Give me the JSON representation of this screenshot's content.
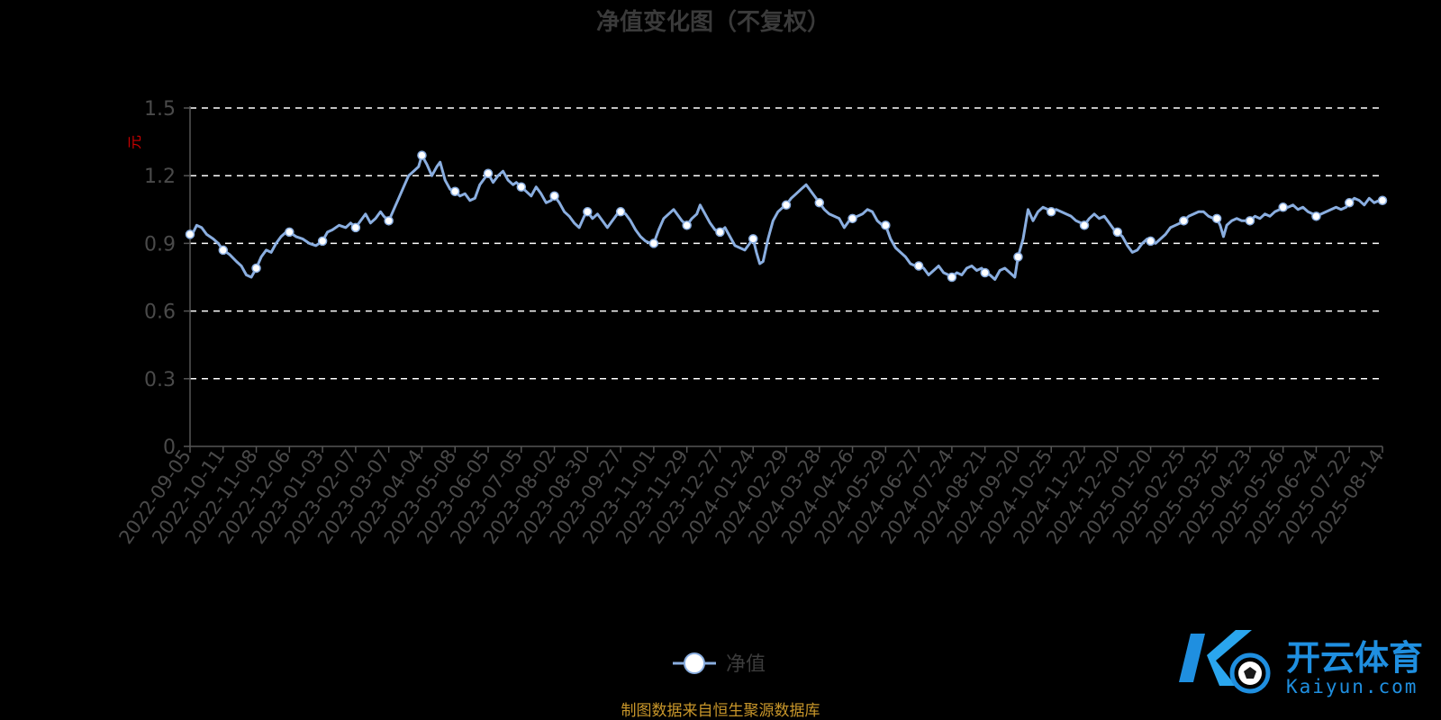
{
  "chart_data": {
    "type": "line",
    "title": "净值变化图（不复权）",
    "ylabel": "元",
    "xlabel": "",
    "ylim": [
      0,
      1.5
    ],
    "yticks": [
      "0",
      "0.3",
      "0.6",
      "0.9",
      "1.2",
      "1.5"
    ],
    "grid": true,
    "legend_position": "bottom-center",
    "categories": [
      "2022-09-05",
      "2022-10-11",
      "2022-11-08",
      "2022-12-06",
      "2023-01-03",
      "2023-02-07",
      "2023-03-07",
      "2023-04-04",
      "2023-05-08",
      "2023-06-05",
      "2023-07-05",
      "2023-08-02",
      "2023-08-30",
      "2023-09-27",
      "2023-11-01",
      "2023-11-29",
      "2023-12-27",
      "2024-01-24",
      "2024-02-29",
      "2024-03-28",
      "2024-04-26",
      "2024-05-29",
      "2024-06-27",
      "2024-07-24",
      "2024-08-21",
      "2024-09-20",
      "2024-10-25",
      "2024-11-22",
      "2024-12-20",
      "2025-01-20",
      "2025-02-25",
      "2025-03-25",
      "2025-04-23",
      "2025-05-26",
      "2025-06-24",
      "2025-07-22",
      "2025-08-14"
    ],
    "series": [
      {
        "name": "净值",
        "color": "#8aaee0",
        "values": [
          0.94,
          0.87,
          0.79,
          0.95,
          0.91,
          0.97,
          1.0,
          1.29,
          1.13,
          1.21,
          1.15,
          1.11,
          1.04,
          1.04,
          0.9,
          0.98,
          0.95,
          0.92,
          1.07,
          1.08,
          1.01,
          0.98,
          0.8,
          0.75,
          0.77,
          0.84,
          1.04,
          0.98,
          0.95,
          0.91,
          1.0,
          1.01,
          1.0,
          1.06,
          1.02,
          1.08,
          1.09
        ],
        "path_points": [
          [
            0,
            0.93
          ],
          [
            0.1,
            0.95
          ],
          [
            0.2,
            0.98
          ],
          [
            0.35,
            0.97
          ],
          [
            0.5,
            0.94
          ],
          [
            0.7,
            0.92
          ],
          [
            0.85,
            0.9
          ],
          [
            1,
            0.87
          ],
          [
            1.2,
            0.85
          ],
          [
            1.4,
            0.82
          ],
          [
            1.55,
            0.8
          ],
          [
            1.7,
            0.76
          ],
          [
            1.85,
            0.75
          ],
          [
            2,
            0.79
          ],
          [
            2.15,
            0.84
          ],
          [
            2.3,
            0.87
          ],
          [
            2.45,
            0.86
          ],
          [
            2.6,
            0.9
          ],
          [
            2.75,
            0.93
          ],
          [
            2.9,
            0.95
          ],
          [
            3,
            0.95
          ],
          [
            3.2,
            0.93
          ],
          [
            3.4,
            0.92
          ],
          [
            3.6,
            0.9
          ],
          [
            3.8,
            0.89
          ],
          [
            4,
            0.91
          ],
          [
            4.15,
            0.95
          ],
          [
            4.3,
            0.96
          ],
          [
            4.5,
            0.98
          ],
          [
            4.7,
            0.97
          ],
          [
            4.85,
            0.99
          ],
          [
            5,
            0.97
          ],
          [
            5.15,
            1.0
          ],
          [
            5.3,
            1.03
          ],
          [
            5.45,
            0.99
          ],
          [
            5.6,
            1.01
          ],
          [
            5.75,
            1.04
          ],
          [
            5.85,
            1.02
          ],
          [
            6,
            1.0
          ],
          [
            6.15,
            1.05
          ],
          [
            6.3,
            1.1
          ],
          [
            6.45,
            1.15
          ],
          [
            6.6,
            1.2
          ],
          [
            6.75,
            1.22
          ],
          [
            6.9,
            1.24
          ],
          [
            7,
            1.29
          ],
          [
            7.15,
            1.25
          ],
          [
            7.3,
            1.2
          ],
          [
            7.45,
            1.24
          ],
          [
            7.55,
            1.26
          ],
          [
            7.7,
            1.18
          ],
          [
            7.85,
            1.14
          ],
          [
            8,
            1.13
          ],
          [
            8.15,
            1.11
          ],
          [
            8.3,
            1.12
          ],
          [
            8.45,
            1.09
          ],
          [
            8.6,
            1.1
          ],
          [
            8.75,
            1.16
          ],
          [
            8.9,
            1.19
          ],
          [
            9,
            1.21
          ],
          [
            9.15,
            1.17
          ],
          [
            9.3,
            1.2
          ],
          [
            9.45,
            1.22
          ],
          [
            9.6,
            1.18
          ],
          [
            9.75,
            1.16
          ],
          [
            9.85,
            1.17
          ],
          [
            10,
            1.15
          ],
          [
            10.15,
            1.13
          ],
          [
            10.3,
            1.11
          ],
          [
            10.45,
            1.15
          ],
          [
            10.6,
            1.12
          ],
          [
            10.75,
            1.08
          ],
          [
            10.9,
            1.09
          ],
          [
            11,
            1.11
          ],
          [
            11.15,
            1.08
          ],
          [
            11.3,
            1.04
          ],
          [
            11.45,
            1.02
          ],
          [
            11.6,
            0.99
          ],
          [
            11.75,
            0.97
          ],
          [
            11.9,
            1.02
          ],
          [
            12,
            1.04
          ],
          [
            12.15,
            1.01
          ],
          [
            12.3,
            1.03
          ],
          [
            12.45,
            1.0
          ],
          [
            12.6,
            0.97
          ],
          [
            12.75,
            1.0
          ],
          [
            12.9,
            1.03
          ],
          [
            13,
            1.04
          ],
          [
            13.15,
            1.03
          ],
          [
            13.3,
            1.0
          ],
          [
            13.45,
            0.96
          ],
          [
            13.6,
            0.93
          ],
          [
            13.75,
            0.91
          ],
          [
            13.9,
            0.9
          ],
          [
            14,
            0.9
          ],
          [
            14.15,
            0.96
          ],
          [
            14.3,
            1.01
          ],
          [
            14.45,
            1.03
          ],
          [
            14.6,
            1.05
          ],
          [
            14.75,
            1.02
          ],
          [
            14.85,
            1.0
          ],
          [
            15,
            0.98
          ],
          [
            15.15,
            1.01
          ],
          [
            15.3,
            1.03
          ],
          [
            15.4,
            1.07
          ],
          [
            15.55,
            1.03
          ],
          [
            15.7,
            0.99
          ],
          [
            15.85,
            0.96
          ],
          [
            16,
            0.95
          ],
          [
            16.15,
            0.97
          ],
          [
            16.3,
            0.93
          ],
          [
            16.45,
            0.89
          ],
          [
            16.6,
            0.88
          ],
          [
            16.75,
            0.87
          ],
          [
            16.9,
            0.9
          ],
          [
            17,
            0.92
          ],
          [
            17.1,
            0.86
          ],
          [
            17.2,
            0.81
          ],
          [
            17.3,
            0.82
          ],
          [
            17.45,
            0.92
          ],
          [
            17.6,
            1.0
          ],
          [
            17.75,
            1.04
          ],
          [
            17.9,
            1.06
          ],
          [
            18,
            1.07
          ],
          [
            18.15,
            1.1
          ],
          [
            18.3,
            1.12
          ],
          [
            18.45,
            1.14
          ],
          [
            18.6,
            1.16
          ],
          [
            18.75,
            1.13
          ],
          [
            18.9,
            1.1
          ],
          [
            19,
            1.08
          ],
          [
            19.15,
            1.05
          ],
          [
            19.3,
            1.03
          ],
          [
            19.45,
            1.02
          ],
          [
            19.6,
            1.01
          ],
          [
            19.75,
            0.97
          ],
          [
            19.9,
            1.0
          ],
          [
            20,
            1.01
          ],
          [
            20.15,
            1.02
          ],
          [
            20.3,
            1.03
          ],
          [
            20.45,
            1.05
          ],
          [
            20.6,
            1.04
          ],
          [
            20.75,
            1.0
          ],
          [
            20.9,
            0.98
          ],
          [
            21,
            0.98
          ],
          [
            21.15,
            0.92
          ],
          [
            21.3,
            0.88
          ],
          [
            21.45,
            0.86
          ],
          [
            21.6,
            0.84
          ],
          [
            21.75,
            0.81
          ],
          [
            21.9,
            0.8
          ],
          [
            22,
            0.8
          ],
          [
            22.15,
            0.79
          ],
          [
            22.3,
            0.76
          ],
          [
            22.45,
            0.78
          ],
          [
            22.6,
            0.8
          ],
          [
            22.75,
            0.77
          ],
          [
            22.9,
            0.76
          ],
          [
            23,
            0.75
          ],
          [
            23.15,
            0.77
          ],
          [
            23.3,
            0.76
          ],
          [
            23.45,
            0.79
          ],
          [
            23.6,
            0.8
          ],
          [
            23.75,
            0.78
          ],
          [
            23.9,
            0.79
          ],
          [
            24,
            0.77
          ],
          [
            24.15,
            0.76
          ],
          [
            24.3,
            0.74
          ],
          [
            24.45,
            0.78
          ],
          [
            24.6,
            0.79
          ],
          [
            24.75,
            0.77
          ],
          [
            24.9,
            0.75
          ],
          [
            25,
            0.84
          ],
          [
            25.15,
            0.92
          ],
          [
            25.3,
            1.05
          ],
          [
            25.45,
            1.0
          ],
          [
            25.6,
            1.04
          ],
          [
            25.75,
            1.06
          ],
          [
            25.9,
            1.05
          ],
          [
            26,
            1.04
          ],
          [
            26.15,
            1.05
          ],
          [
            26.3,
            1.04
          ],
          [
            26.45,
            1.03
          ],
          [
            26.6,
            1.02
          ],
          [
            26.75,
            1.0
          ],
          [
            26.9,
            0.99
          ],
          [
            27,
            0.98
          ],
          [
            27.15,
            1.01
          ],
          [
            27.3,
            1.03
          ],
          [
            27.45,
            1.01
          ],
          [
            27.6,
            1.02
          ],
          [
            27.75,
            0.99
          ],
          [
            27.9,
            0.96
          ],
          [
            28,
            0.95
          ],
          [
            28.15,
            0.93
          ],
          [
            28.3,
            0.89
          ],
          [
            28.45,
            0.86
          ],
          [
            28.6,
            0.87
          ],
          [
            28.75,
            0.9
          ],
          [
            28.9,
            0.92
          ],
          [
            29,
            0.91
          ],
          [
            29.15,
            0.9
          ],
          [
            29.3,
            0.92
          ],
          [
            29.45,
            0.94
          ],
          [
            29.6,
            0.97
          ],
          [
            29.75,
            0.98
          ],
          [
            29.9,
            0.99
          ],
          [
            30,
            1.0
          ],
          [
            30.15,
            1.02
          ],
          [
            30.3,
            1.03
          ],
          [
            30.45,
            1.04
          ],
          [
            30.6,
            1.04
          ],
          [
            30.75,
            1.02
          ],
          [
            30.9,
            1.01
          ],
          [
            31,
            1.01
          ],
          [
            31.1,
            0.98
          ],
          [
            31.2,
            0.93
          ],
          [
            31.3,
            0.98
          ],
          [
            31.45,
            1.0
          ],
          [
            31.6,
            1.01
          ],
          [
            31.75,
            1.0
          ],
          [
            31.9,
            1.0
          ],
          [
            32,
            1.0
          ],
          [
            32.15,
            1.02
          ],
          [
            32.3,
            1.01
          ],
          [
            32.45,
            1.03
          ],
          [
            32.6,
            1.02
          ],
          [
            32.75,
            1.04
          ],
          [
            32.9,
            1.05
          ],
          [
            33,
            1.06
          ],
          [
            33.15,
            1.06
          ],
          [
            33.3,
            1.07
          ],
          [
            33.45,
            1.05
          ],
          [
            33.6,
            1.06
          ],
          [
            33.75,
            1.04
          ],
          [
            33.9,
            1.03
          ],
          [
            34,
            1.02
          ],
          [
            34.15,
            1.03
          ],
          [
            34.3,
            1.04
          ],
          [
            34.45,
            1.05
          ],
          [
            34.6,
            1.06
          ],
          [
            34.75,
            1.05
          ],
          [
            34.9,
            1.06
          ],
          [
            35,
            1.08
          ],
          [
            35.15,
            1.1
          ],
          [
            35.3,
            1.09
          ],
          [
            35.45,
            1.07
          ],
          [
            35.6,
            1.1
          ],
          [
            35.75,
            1.08
          ],
          [
            35.9,
            1.09
          ],
          [
            36,
            1.09
          ]
        ]
      }
    ],
    "source": "制图数据来自恒生聚源数据库"
  },
  "watermark": {
    "cn": "开云体育",
    "en": "Kaiyun.com",
    "color": "#1f8fe0"
  }
}
